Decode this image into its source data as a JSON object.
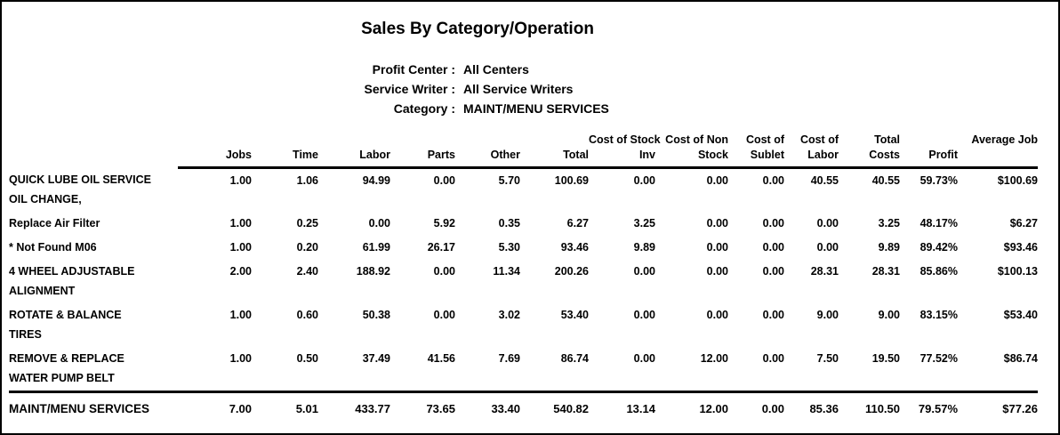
{
  "page": {
    "title": "Sales By Category/Operation",
    "filters": [
      {
        "label": "Profit Center :",
        "value": "All Centers"
      },
      {
        "label": "Service Writer :",
        "value": "All Service Writers"
      },
      {
        "label": "Category :",
        "value": "MAINT/MENU SERVICES"
      }
    ]
  },
  "table": {
    "columns": [
      {
        "line1": "",
        "line2": "Jobs"
      },
      {
        "line1": "",
        "line2": "Time"
      },
      {
        "line1": "",
        "line2": "Labor"
      },
      {
        "line1": "",
        "line2": "Parts"
      },
      {
        "line1": "",
        "line2": "Other"
      },
      {
        "line1": "",
        "line2": "Total"
      },
      {
        "line1": "Cost of Stock",
        "line2": "Inv"
      },
      {
        "line1": "Cost of Non",
        "line2": "Stock"
      },
      {
        "line1": "Cost of",
        "line2": "Sublet"
      },
      {
        "line1": "Cost of",
        "line2": "Labor"
      },
      {
        "line1": "Total",
        "line2": "Costs"
      },
      {
        "line1": "",
        "line2": "Profit"
      },
      {
        "line1": "Average Job",
        "line2": ""
      }
    ],
    "rows": [
      {
        "name_lines": [
          "QUICK LUBE OIL SERVICE",
          "OIL CHANGE,"
        ],
        "values": [
          "1.00",
          "1.06",
          "94.99",
          "0.00",
          "5.70",
          "100.69",
          "0.00",
          "0.00",
          "0.00",
          "40.55",
          "40.55",
          "59.73%",
          "$100.69"
        ]
      },
      {
        "name_lines": [
          "Replace Air Filter"
        ],
        "values": [
          "1.00",
          "0.25",
          "0.00",
          "5.92",
          "0.35",
          "6.27",
          "3.25",
          "0.00",
          "0.00",
          "0.00",
          "3.25",
          "48.17%",
          "$6.27"
        ]
      },
      {
        "name_lines": [
          "* Not Found M06"
        ],
        "values": [
          "1.00",
          "0.20",
          "61.99",
          "26.17",
          "5.30",
          "93.46",
          "9.89",
          "0.00",
          "0.00",
          "0.00",
          "9.89",
          "89.42%",
          "$93.46"
        ]
      },
      {
        "name_lines": [
          "4 WHEEL ADJUSTABLE",
          "ALIGNMENT"
        ],
        "values": [
          "2.00",
          "2.40",
          "188.92",
          "0.00",
          "11.34",
          "200.26",
          "0.00",
          "0.00",
          "0.00",
          "28.31",
          "28.31",
          "85.86%",
          "$100.13"
        ]
      },
      {
        "name_lines": [
          "ROTATE & BALANCE",
          "TIRES"
        ],
        "values": [
          "1.00",
          "0.60",
          "50.38",
          "0.00",
          "3.02",
          "53.40",
          "0.00",
          "0.00",
          "0.00",
          "9.00",
          "9.00",
          "83.15%",
          "$53.40"
        ]
      },
      {
        "name_lines": [
          "REMOVE & REPLACE",
          "WATER PUMP BELT"
        ],
        "values": [
          "1.00",
          "0.50",
          "37.49",
          "41.56",
          "7.69",
          "86.74",
          "0.00",
          "12.00",
          "0.00",
          "7.50",
          "19.50",
          "77.52%",
          "$86.74"
        ]
      }
    ],
    "total": {
      "name": "MAINT/MENU SERVICES",
      "values": [
        "7.00",
        "5.01",
        "433.77",
        "73.65",
        "33.40",
        "540.82",
        "13.14",
        "12.00",
        "0.00",
        "85.36",
        "110.50",
        "79.57%",
        "$77.26"
      ]
    }
  },
  "colors": {
    "text": "#000000",
    "background": "#ffffff",
    "page_border": "#000000",
    "rule": "#000000"
  }
}
